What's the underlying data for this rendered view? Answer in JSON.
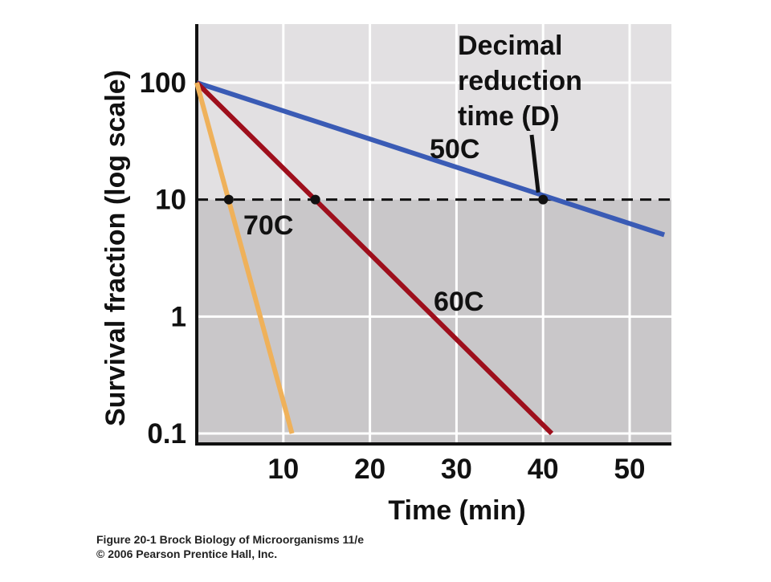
{
  "chart_data": {
    "type": "line",
    "xlabel": "Time (min)",
    "ylabel": "Survival fraction (log scale)",
    "y_scale": "log",
    "xlim": [
      0,
      54
    ],
    "ylim": [
      0.1,
      200
    ],
    "x_ticks": [
      10,
      20,
      30,
      40,
      50
    ],
    "x_tick_labels": [
      "10",
      "20",
      "30",
      "40",
      "50"
    ],
    "y_ticks": [
      0.1,
      1,
      10,
      100
    ],
    "y_tick_labels": [
      "0.1",
      "1",
      "10",
      "100"
    ],
    "grid": true,
    "threshold_y": 10,
    "series": [
      {
        "name": "50C",
        "color": "#3a5bb5",
        "x": [
          0,
          54
        ],
        "y": [
          100,
          5
        ],
        "marker_x": 40,
        "marker_y": 10
      },
      {
        "name": "60C",
        "color": "#9e0f1c",
        "x": [
          0,
          41
        ],
        "y": [
          100,
          0.1
        ],
        "marker_x": 13.7,
        "marker_y": 10
      },
      {
        "name": "70C",
        "color": "#efb15a",
        "x": [
          0,
          11
        ],
        "y": [
          100,
          0.1
        ],
        "marker_x": 3.7,
        "marker_y": 10
      }
    ],
    "annotation": {
      "lines": [
        "Decimal",
        "reduction",
        "time (D)"
      ],
      "points_to": {
        "x": 40,
        "y": 10
      }
    }
  },
  "caption": {
    "line1": "Figure 20-1  Brock Biology of Microorganisms 11/e",
    "line2": "© 2006 Pearson Prentice Hall, Inc."
  }
}
